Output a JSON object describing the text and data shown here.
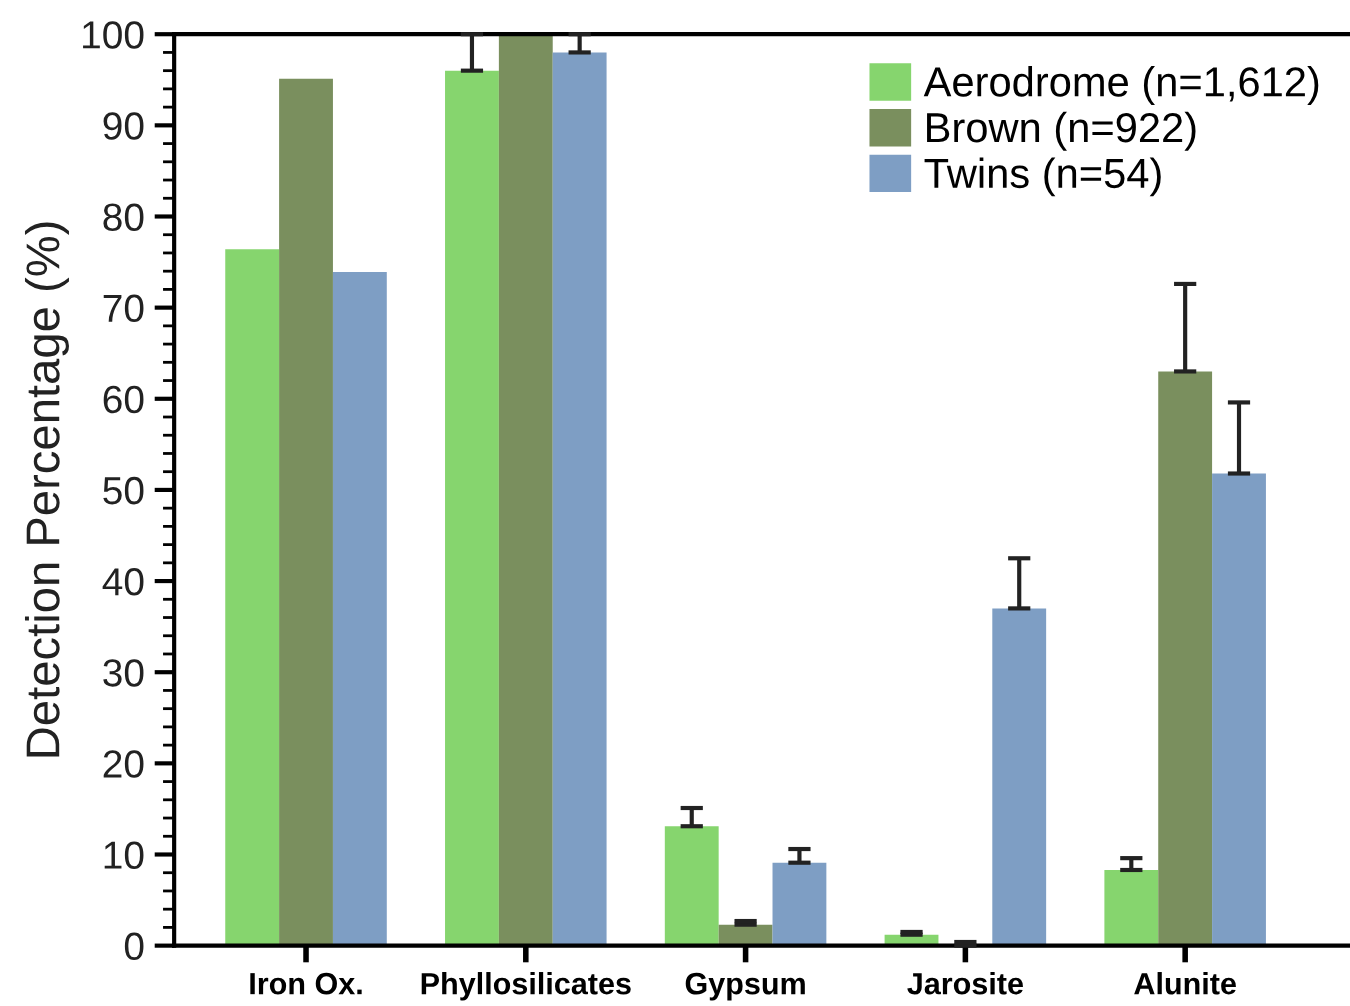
{
  "chart_data": {
    "type": "bar",
    "ylabel": "Detection Percentage (%)",
    "categories": [
      "Iron Ox.",
      "Phyllosilicates",
      "Gypsum",
      "Jarosite",
      "Alunite"
    ],
    "series": [
      {
        "name": "Aerodrome (n=1,612)",
        "color": "#86d56e",
        "values": [
          76.4,
          96.0,
          13.1,
          1.2,
          8.3
        ],
        "errors": [
          null,
          [
            96.0,
            100
          ],
          [
            13.1,
            15.1
          ],
          [
            1.2,
            1.5
          ],
          [
            8.3,
            9.6
          ]
        ]
      },
      {
        "name": "Brown (n=922)",
        "color": "#7a8f5e",
        "values": [
          95.1,
          100,
          2.3,
          0,
          63.0
        ],
        "errors": [
          null,
          null,
          [
            2.3,
            2.7
          ],
          [
            0,
            0.4
          ],
          [
            63.0,
            72.6
          ]
        ]
      },
      {
        "name": "Twins (n=54)",
        "color": "#7e9ec4",
        "values": [
          73.9,
          98.0,
          9.1,
          37.0,
          51.8
        ],
        "errors": [
          null,
          [
            98.0,
            100
          ],
          [
            9.1,
            10.6
          ],
          [
            37.0,
            42.5
          ],
          [
            51.8,
            59.6
          ]
        ]
      }
    ],
    "ylim": [
      0,
      100
    ],
    "yticks": [
      0,
      10,
      20,
      30,
      40,
      50,
      60,
      70,
      80,
      90,
      100
    ],
    "grid": false,
    "legend": "top right"
  }
}
